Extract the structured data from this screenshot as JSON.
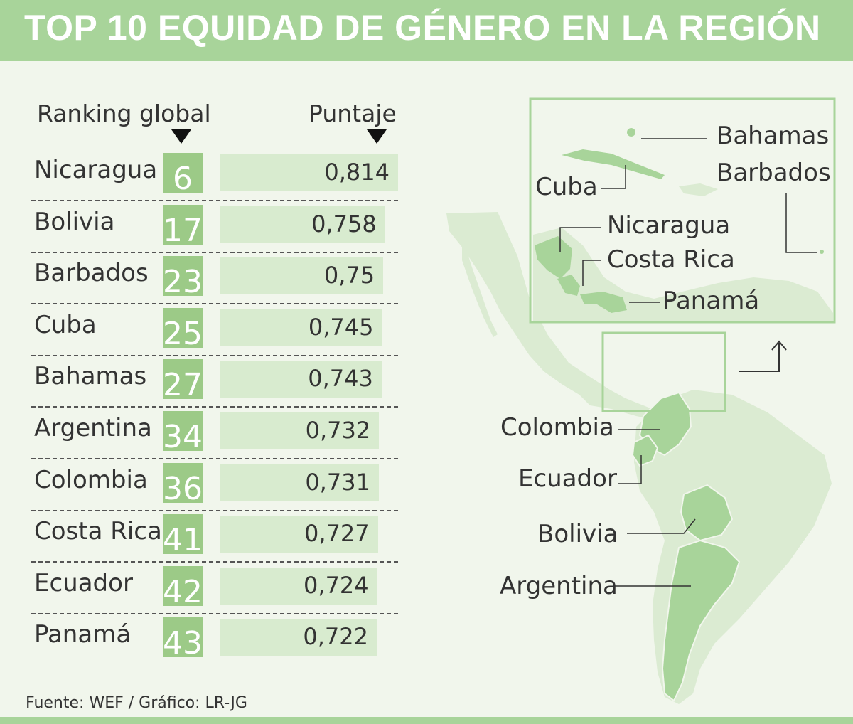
{
  "title": "TOP 10 EQUIDAD DE GÉNERO EN LA REGIÓN",
  "source": "Fuente: WEF / Gráfico: LR-JG",
  "colors": {
    "accent": "#a8d49a",
    "rank_box": "#9cca87",
    "bar": "#d8ebcf",
    "background": "#f1f6ec"
  },
  "chart_data": {
    "type": "table",
    "column_headers": [
      "Ranking global",
      "Puntaje"
    ],
    "rows": [
      {
        "country": "Nicaragua",
        "rank": 6,
        "score": "0,814"
      },
      {
        "country": "Bolivia",
        "rank": 17,
        "score": "0,758"
      },
      {
        "country": "Barbados",
        "rank": 23,
        "score": "0,75"
      },
      {
        "country": "Cuba",
        "rank": 25,
        "score": "0,745"
      },
      {
        "country": "Bahamas",
        "rank": 27,
        "score": "0,743"
      },
      {
        "country": "Argentina",
        "rank": 34,
        "score": "0,732"
      },
      {
        "country": "Colombia",
        "rank": 36,
        "score": "0,731"
      },
      {
        "country": "Costa Rica",
        "rank": 41,
        "score": "0,727"
      },
      {
        "country": "Ecuador",
        "rank": 42,
        "score": "0,724"
      },
      {
        "country": "Panamá",
        "rank": 43,
        "score": "0,722"
      }
    ]
  },
  "map": {
    "inset_labels": [
      "Bahamas",
      "Barbados",
      "Cuba",
      "Nicaragua",
      "Costa Rica",
      "Panamá"
    ],
    "main_labels": [
      "Colombia",
      "Ecuador",
      "Bolivia",
      "Argentina"
    ]
  }
}
